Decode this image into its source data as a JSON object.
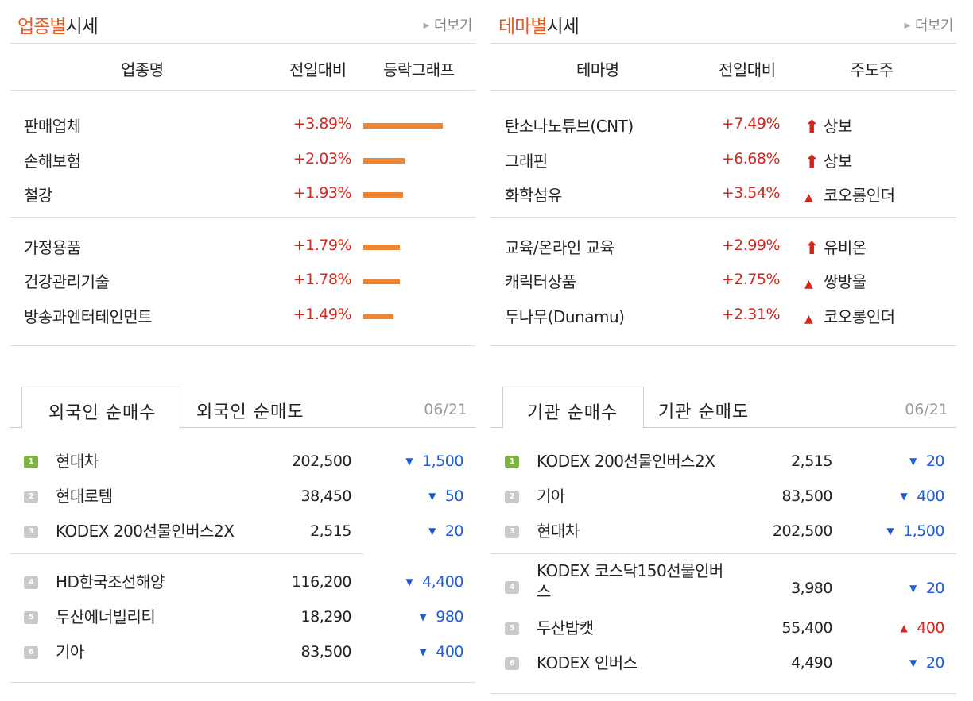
{
  "industry": {
    "title_hl": "업종별",
    "title_rest": "시세",
    "more": "더보기",
    "cols": [
      "업종명",
      "전일대비",
      "등락그래프"
    ],
    "rows": [
      {
        "name": "판매업체",
        "pct": "+3.89%",
        "value": 3.89
      },
      {
        "name": "손해보험",
        "pct": "+2.03%",
        "value": 2.03
      },
      {
        "name": "철강",
        "pct": "+1.93%",
        "value": 1.93
      },
      {
        "name": "가정용품",
        "pct": "+1.79%",
        "value": 1.79
      },
      {
        "name": "건강관리기술",
        "pct": "+1.78%",
        "value": 1.78
      },
      {
        "name": "방송과엔터테인먼트",
        "pct": "+1.49%",
        "value": 1.49
      }
    ]
  },
  "theme": {
    "title_hl": "테마별",
    "title_rest": "시세",
    "more": "더보기",
    "cols": [
      "테마명",
      "전일대비",
      "주도주"
    ],
    "rows": [
      {
        "name": "탄소나노튜브(CNT)",
        "pct": "+7.49%",
        "leader": "상보",
        "icon": "upper-limit-arrow-icon"
      },
      {
        "name": "그래핀",
        "pct": "+6.68%",
        "leader": "상보",
        "icon": "upper-limit-arrow-icon"
      },
      {
        "name": "화학섬유",
        "pct": "+3.54%",
        "leader": "코오롱인더",
        "icon": "up-triangle-icon"
      },
      {
        "name": "교육/온라인 교육",
        "pct": "+2.99%",
        "leader": "유비온",
        "icon": "upper-limit-arrow-icon"
      },
      {
        "name": "캐릭터상품",
        "pct": "+2.75%",
        "leader": "쌍방울",
        "icon": "up-triangle-icon"
      },
      {
        "name": "두나무(Dunamu)",
        "pct": "+2.31%",
        "leader": "코오롱인더",
        "icon": "up-triangle-icon"
      }
    ]
  },
  "foreign": {
    "tab_active": "외국인 순매수",
    "tab_other": "외국인 순매도",
    "date": "06/21",
    "rows": [
      {
        "rank": "1",
        "name": "현대차",
        "price": "202,500",
        "chg": "1,500",
        "dir": "down"
      },
      {
        "rank": "2",
        "name": "현대로템",
        "price": "38,450",
        "chg": "50",
        "dir": "down"
      },
      {
        "rank": "3",
        "name": "KODEX 200선물인버스2X",
        "price": "2,515",
        "chg": "20",
        "dir": "down"
      },
      {
        "rank": "4",
        "name": "HD한국조선해양",
        "price": "116,200",
        "chg": "4,400",
        "dir": "down"
      },
      {
        "rank": "5",
        "name": "두산에너빌리티",
        "price": "18,290",
        "chg": "980",
        "dir": "down"
      },
      {
        "rank": "6",
        "name": "기아",
        "price": "83,500",
        "chg": "400",
        "dir": "down"
      }
    ]
  },
  "institution": {
    "tab_active": "기관 순매수",
    "tab_other": "기관 순매도",
    "date": "06/21",
    "rows": [
      {
        "rank": "1",
        "name": "KODEX 200선물인버스2X",
        "price": "2,515",
        "chg": "20",
        "dir": "down"
      },
      {
        "rank": "2",
        "name": "기아",
        "price": "83,500",
        "chg": "400",
        "dir": "down"
      },
      {
        "rank": "3",
        "name": "현대차",
        "price": "202,500",
        "chg": "1,500",
        "dir": "down"
      },
      {
        "rank": "4",
        "name": "KODEX 코스닥150선물인버스",
        "price": "3,980",
        "chg": "20",
        "dir": "down"
      },
      {
        "rank": "5",
        "name": "두산밥캣",
        "price": "55,400",
        "chg": "400",
        "dir": "up"
      },
      {
        "rank": "6",
        "name": "KODEX 인버스",
        "price": "4,490",
        "chg": "20",
        "dir": "down"
      }
    ]
  },
  "colors": {
    "accent": "#e85a20",
    "up": "#d6261c",
    "down": "#1e5bd6",
    "bar": "#ee8533",
    "rank1": "#7cb342"
  }
}
